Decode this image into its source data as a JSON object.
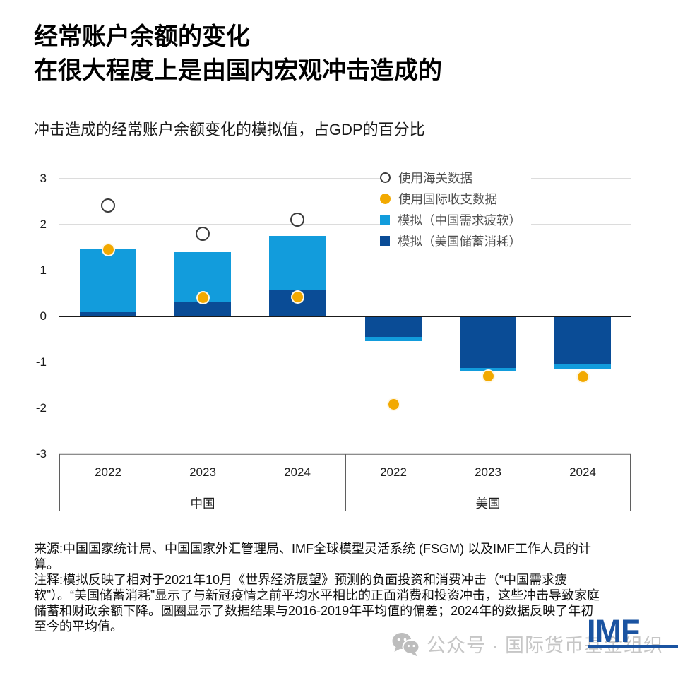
{
  "page": {
    "title_line1": "经常账户余额的变化",
    "title_line2": "在很大程度上是由国内宏观冲击造成的",
    "subtitle": "冲击造成的经常账户余额变化的模拟值，占GDP的百分比"
  },
  "colors": {
    "light_blue": "#129CDC",
    "dark_blue": "#0A4C96",
    "orange": "#F2A900",
    "circle_outline": "#3B3B3B",
    "gridline": "#DCDCDC",
    "zero_line": "#1A1A1A",
    "bracket": "#5F5F5F",
    "imf_blue": "#1A53A1",
    "watermark_gray": "#C6C6C6"
  },
  "legend": {
    "items": [
      {
        "key": "customs",
        "label": "使用海关数据",
        "marker": "circle-outline",
        "color": "#3B3B3B"
      },
      {
        "key": "bop",
        "label": "使用国际收支数据",
        "marker": "circle-fill",
        "color": "#F2A900"
      },
      {
        "key": "china-demand",
        "label": "模拟（中国需求疲软）",
        "marker": "square",
        "color": "#129CDC"
      },
      {
        "key": "us-savings",
        "label": "模拟（美国储蓄消耗）",
        "marker": "square",
        "color": "#0A4C96"
      }
    ]
  },
  "chart_data": {
    "type": "bar",
    "stacked": true,
    "title": "冲击造成的经常账户余额变化的模拟值，占GDP的百分比",
    "ylabel": "占GDP的百分比",
    "ylim": [
      -3,
      3
    ],
    "yticks": [
      3,
      2,
      1,
      0,
      -1,
      -2,
      -3
    ],
    "grid": true,
    "legend_position": "top-right",
    "groups": [
      {
        "label": "中国",
        "categories": [
          "2022",
          "2023",
          "2024"
        ]
      },
      {
        "label": "美国",
        "categories": [
          "2022",
          "2023",
          "2024"
        ]
      }
    ],
    "categories": [
      "2022",
      "2023",
      "2024",
      "2022",
      "2023",
      "2024"
    ],
    "series": [
      {
        "key": "us-savings",
        "name": "模拟（美国储蓄消耗）",
        "color": "#0A4C96",
        "values": [
          0.08,
          0.31,
          0.56,
          -0.45,
          -1.13,
          -1.05
        ]
      },
      {
        "key": "china-demand",
        "name": "模拟（中国需求疲软）",
        "color": "#129CDC",
        "values": [
          1.39,
          1.09,
          1.18,
          -0.1,
          -0.08,
          -0.11
        ]
      }
    ],
    "markers": [
      {
        "key": "customs",
        "name": "使用海关数据",
        "style": "open-circle",
        "color": "#3B3B3B",
        "values": [
          2.4,
          1.78,
          2.1,
          null,
          null,
          null
        ]
      },
      {
        "key": "bop",
        "name": "使用国际收支数据",
        "style": "filled-circle",
        "color": "#F2A900",
        "values": [
          1.45,
          0.4,
          0.42,
          -1.92,
          -1.3,
          -1.33
        ]
      }
    ]
  },
  "footer": {
    "source": "来源:中国国家统计局、中国国家外汇管理局、IMF全球模型灵活系统 (FSGM) 以及IMF工作人员的计算。",
    "note": "注释:模拟反映了相对于2021年10月《世界经济展望》预测的负面投资和消费冲击（“中国需求疲软”）。“美国储蓄消耗”显示了与新冠疫情之前平均水平相比的正面消费和投资冲击，这些冲击导致家庭储蓄和财政余额下降。圆圈显示了数据结果与2016-2019年平均值的偏差；2024年的数据反映了年初至今的平均值。"
  },
  "watermark": {
    "text": "公众号 · 国际货币基金组织",
    "logo": "IMF"
  }
}
